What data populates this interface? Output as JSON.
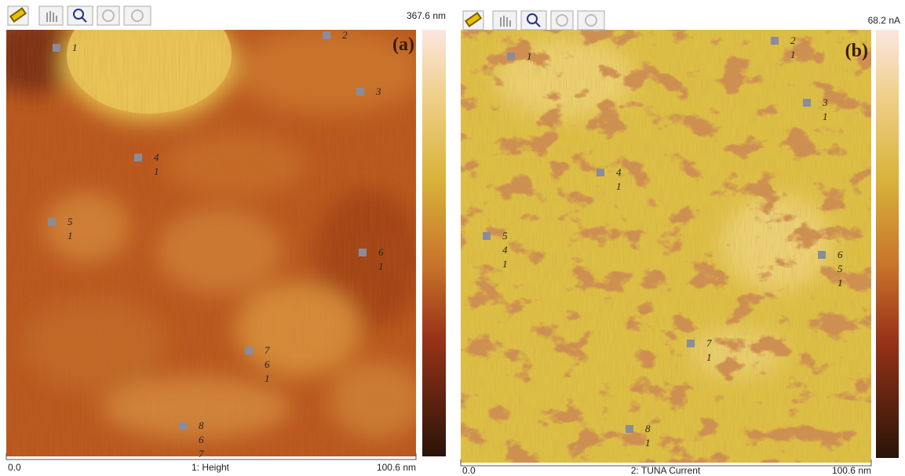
{
  "panels": [
    {
      "label": "(a)",
      "scale_max": "367.6 nm",
      "x_start": "0.0",
      "x_end": "100.6 nm",
      "caption": "1: Height",
      "markers": [
        {
          "labels": [
            "1"
          ]
        },
        {
          "labels": [
            "2"
          ]
        },
        {
          "labels": [
            "3"
          ]
        },
        {
          "labels": [
            "4",
            "1"
          ]
        },
        {
          "labels": [
            "5",
            "1"
          ]
        },
        {
          "labels": [
            "6",
            "1"
          ]
        },
        {
          "labels": [
            "7",
            "6",
            "1"
          ]
        },
        {
          "labels": [
            "8",
            "6",
            "7"
          ]
        }
      ]
    },
    {
      "label": "(b)",
      "scale_max": "68.2 nA",
      "x_start": "0.0",
      "x_end": "100.6 nm",
      "caption": "2: TUNA Current",
      "markers": [
        {
          "labels": [
            "1"
          ]
        },
        {
          "labels": [
            "2",
            "1"
          ]
        },
        {
          "labels": [
            "3",
            "1"
          ]
        },
        {
          "labels": [
            "4",
            "1"
          ]
        },
        {
          "labels": [
            "5",
            "4",
            "1"
          ]
        },
        {
          "labels": [
            "6",
            "5",
            "1"
          ]
        },
        {
          "labels": [
            "7",
            "1"
          ]
        },
        {
          "labels": [
            "8",
            "1"
          ]
        }
      ]
    }
  ]
}
